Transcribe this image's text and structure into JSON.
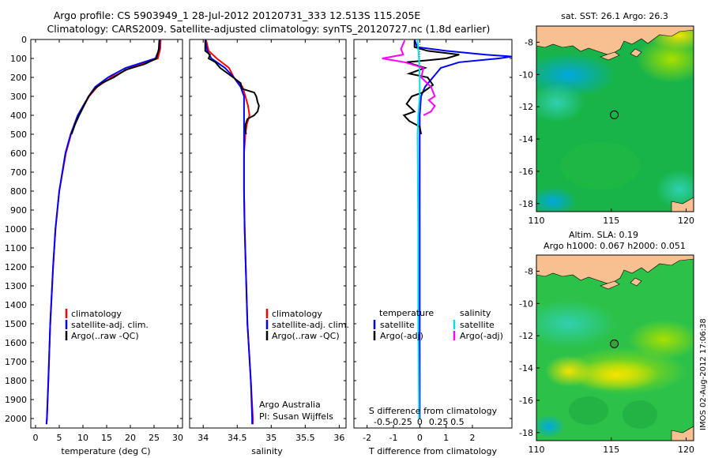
{
  "header": {
    "line1": "Argo profile: CS 5903949_1 28-Jul-2012 20120731_333 12.513S 115.205E",
    "line2": "Climatology: CARS2009. Satellite-adjusted climatology: synTS_20120727.nc (1.8d earlier)"
  },
  "colors": {
    "climatology": "#ff0000",
    "satellite": "#0000ff",
    "argo": "#000000",
    "sat_salinity": "#00e0e0",
    "argo_salinity": "#ff00ff"
  },
  "depth_axis": {
    "range": [
      0,
      2050
    ],
    "ticks": [
      0,
      100,
      200,
      300,
      400,
      500,
      600,
      700,
      800,
      900,
      1000,
      1100,
      1200,
      1300,
      1400,
      1500,
      1600,
      1700,
      1800,
      1900,
      2000
    ]
  },
  "chart_data": [
    {
      "type": "line",
      "id": "temperature",
      "xlabel": "temperature (deg C)",
      "xlim": [
        -1,
        31
      ],
      "xticks": [
        0,
        5,
        10,
        15,
        20,
        25,
        30
      ],
      "ylim": [
        2050,
        0
      ],
      "series": [
        {
          "name": "climatology",
          "color": "#ff0000",
          "depth": [
            0,
            50,
            100,
            150,
            200,
            250,
            300,
            400,
            500,
            600,
            800,
            1000,
            1200,
            1500,
            1800,
            2000,
            2030
          ],
          "values": [
            26.4,
            26.3,
            25.8,
            20,
            16,
            13,
            11.3,
            9,
            7.5,
            6.4,
            5,
            4.2,
            3.7,
            3.1,
            2.7,
            2.4,
            2.3
          ]
        },
        {
          "name": "satellite-adj. clim.",
          "color": "#0000ff",
          "depth": [
            0,
            50,
            100,
            150,
            200,
            250,
            300,
            400,
            500,
            600,
            800,
            1000,
            1200,
            1500,
            1800,
            2000,
            2030
          ],
          "values": [
            26.2,
            26.1,
            25.3,
            19,
            15.3,
            12.6,
            11.2,
            8.9,
            7.4,
            6.3,
            5,
            4.2,
            3.7,
            3.1,
            2.7,
            2.4,
            2.3
          ]
        },
        {
          "name": "Argo(..raw -QC)",
          "color": "#000000",
          "depth": [
            5,
            50,
            100,
            130,
            160,
            200,
            230,
            260,
            300,
            350,
            400,
            450,
            500
          ],
          "values": [
            26.1,
            26.0,
            25.5,
            23,
            19,
            16.5,
            14,
            12.5,
            11.2,
            10.2,
            9.2,
            8.3,
            7.6
          ]
        }
      ],
      "legend": [
        "climatology",
        "satellite-adj. clim.",
        "Argo(..raw -QC)"
      ]
    },
    {
      "type": "line",
      "id": "salinity",
      "xlabel": "salinity",
      "xlim": [
        33.8,
        36.1
      ],
      "xticks": [
        34,
        34.5,
        35,
        35.5,
        36
      ],
      "xticklabels": [
        "34",
        "34.5",
        "35",
        "35.5",
        "36"
      ],
      "ylim": [
        2050,
        0
      ],
      "series": [
        {
          "name": "climatology",
          "color": "#ff0000",
          "depth": [
            0,
            60,
            100,
            150,
            200,
            250,
            300,
            350,
            400,
            450,
            500,
            600,
            800,
            1000,
            1500,
            1800,
            2000,
            2030
          ],
          "values": [
            34.04,
            34.08,
            34.2,
            34.38,
            34.45,
            34.58,
            34.62,
            34.66,
            34.68,
            34.64,
            34.62,
            34.6,
            34.6,
            34.61,
            34.65,
            34.7,
            34.73,
            34.73
          ]
        },
        {
          "name": "satellite-adj. clim.",
          "color": "#0000ff",
          "depth": [
            0,
            60,
            100,
            150,
            200,
            250,
            300,
            350,
            400,
            450,
            500,
            600,
            800,
            1000,
            1500,
            1800,
            2000,
            2030
          ],
          "values": [
            34.03,
            34.06,
            34.12,
            34.32,
            34.45,
            34.55,
            34.6,
            34.6,
            34.6,
            34.6,
            34.6,
            34.6,
            34.6,
            34.61,
            34.65,
            34.7,
            34.72,
            34.72
          ]
        },
        {
          "name": "Argo(..raw -QC)",
          "color": "#000000",
          "depth": [
            5,
            60,
            80,
            100,
            120,
            150,
            200,
            230,
            260,
            280,
            300,
            330,
            350,
            380,
            400,
            420,
            450,
            480,
            500
          ],
          "values": [
            34.03,
            34.03,
            34.1,
            34.08,
            34.18,
            34.25,
            34.44,
            34.55,
            34.57,
            34.75,
            34.78,
            34.8,
            34.82,
            34.8,
            34.75,
            34.65,
            34.62,
            34.62,
            34.63
          ]
        }
      ],
      "legend": [
        "climatology",
        "satellite-adj. clim.",
        "Argo(..raw -QC)"
      ],
      "annotation": [
        "Argo Australia",
        "PI: Susan Wijffels"
      ]
    },
    {
      "type": "line",
      "id": "difference",
      "xlabel_top": "S difference from climatology",
      "xlabel": "T difference from climatology",
      "s_ticks": [
        -0.5,
        -0.25,
        0,
        0.25,
        0.5
      ],
      "s_ticklabels": [
        "-0.5",
        "-0.25",
        "0",
        "0.25",
        "0.5"
      ],
      "t_ticks": [
        -2,
        -1,
        0,
        1,
        2
      ],
      "xlim_T": [
        -2.5,
        3.5
      ],
      "ylim": [
        2050,
        0
      ],
      "series": [
        {
          "name": "T satellite",
          "group": "temperature",
          "color": "#0000ff",
          "depth": [
            0,
            40,
            60,
            80,
            90,
            100,
            120,
            150,
            200,
            250,
            300,
            400,
            500,
            600,
            1000,
            1500,
            2000
          ],
          "values": [
            -0.2,
            -0.1,
            1.0,
            2.5,
            3.5,
            3.0,
            1.5,
            0.8,
            0.5,
            0.2,
            0.05,
            0,
            0,
            0,
            0,
            0,
            0
          ]
        },
        {
          "name": "T Argo(-adj)",
          "group": "temperature",
          "color": "#000000",
          "depth": [
            5,
            40,
            60,
            80,
            100,
            110,
            120,
            150,
            180,
            200,
            240,
            280,
            300,
            340,
            380,
            400,
            430,
            460,
            500
          ],
          "values": [
            -0.2,
            -0.2,
            0.3,
            1.5,
            1.0,
            0.3,
            -0.5,
            0.2,
            -0.4,
            0.3,
            0.5,
            0.1,
            -0.3,
            -0.5,
            -0.2,
            -0.6,
            -0.4,
            0,
            0.05
          ]
        },
        {
          "name": "S satellite",
          "group": "salinity",
          "color": "#00e0e0",
          "depth": [
            0,
            50,
            100,
            200,
            300,
            400,
            500,
            1000,
            1500,
            2000
          ],
          "values": [
            -0.03,
            -0.02,
            -0.01,
            0,
            0,
            -0.02,
            -0.03,
            -0.02,
            -0.02,
            -0.01
          ]
        },
        {
          "name": "S Argo(-adj)",
          "group": "salinity",
          "color": "#ff00ff",
          "depth": [
            5,
            50,
            80,
            100,
            120,
            150,
            200,
            250,
            300,
            320,
            350,
            380,
            400
          ],
          "values": [
            -0.2,
            -0.25,
            -0.22,
            -0.5,
            -0.2,
            0.05,
            0.02,
            0.15,
            0.2,
            0.12,
            0.2,
            0.15,
            0.05
          ]
        }
      ],
      "legend": {
        "temperature_title": "temperature",
        "salinity_title": "salinity",
        "t_items": [
          "satellite",
          "Argo(-adj)"
        ],
        "s_items": [
          "satellite",
          "Argo(-adj)"
        ]
      }
    },
    {
      "type": "heatmap",
      "id": "sst-map",
      "title": "sat. SST: 26.1  Argo: 26.3",
      "xlim": [
        110,
        120.5
      ],
      "ylim": [
        -18.5,
        -7
      ],
      "xticks": [
        110,
        115,
        120
      ],
      "yticks": [
        -8,
        -10,
        -12,
        -14,
        -16,
        -18
      ],
      "marker": {
        "lon": 115.2,
        "lat": -12.5
      }
    },
    {
      "type": "heatmap",
      "id": "sla-map",
      "title_line1": "Altim. SLA: 0.19",
      "title_line2": "Argo h1000: 0.067 h2000: 0.051",
      "xlim": [
        110,
        120.5
      ],
      "ylim": [
        -18.5,
        -7
      ],
      "xticks": [
        110,
        115,
        120
      ],
      "yticks": [
        -8,
        -10,
        -12,
        -14,
        -16,
        -18
      ],
      "marker": {
        "lon": 115.2,
        "lat": -12.5
      }
    }
  ],
  "footer": {
    "stamp": "IMOS 02-Aug-2012 17:06:38"
  }
}
